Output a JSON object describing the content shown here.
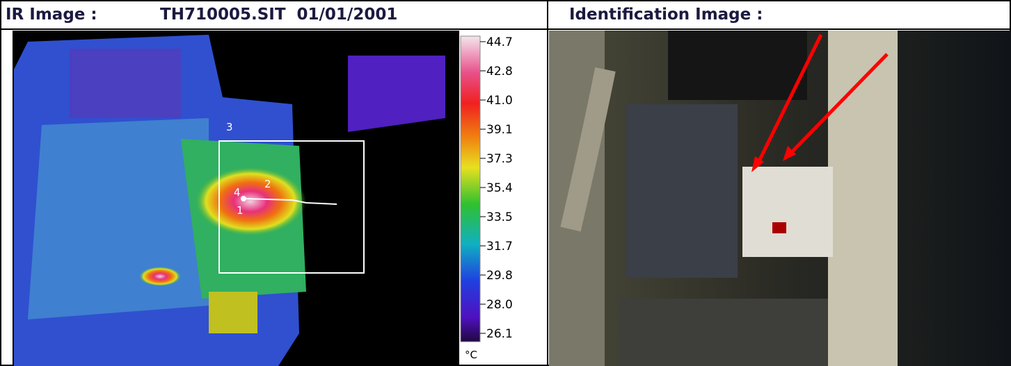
{
  "header": {
    "ir_label": "IR Image :",
    "file": "TH710005.SIT  01/01/2001",
    "id_label": "Identification Image :"
  },
  "ir_image": {
    "markers": [
      "3",
      "4",
      "2",
      "1"
    ],
    "scale": {
      "ticks": [
        "44.7",
        "42.8",
        "41.0",
        "39.1",
        "37.3",
        "35.4",
        "33.5",
        "31.7",
        "29.8",
        "28.0",
        "26.1"
      ],
      "unit": "°C"
    }
  }
}
